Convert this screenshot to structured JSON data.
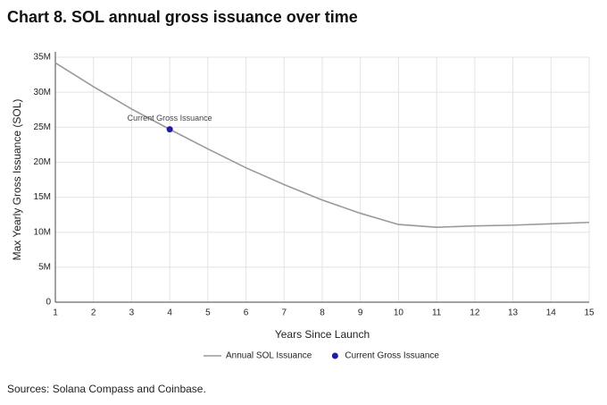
{
  "chart_data": {
    "type": "line",
    "title": "Chart 8. SOL annual gross issuance over time",
    "x_label": "Years Since Launch",
    "y_label": "Max Yearly Gross Issuance (SOL)",
    "x": [
      1,
      2,
      3,
      4,
      5,
      6,
      7,
      8,
      9,
      10,
      11,
      12,
      13,
      14,
      15
    ],
    "series": [
      {
        "name": "Annual SOL Issuance",
        "color": "#9a9a9a",
        "type": "line",
        "values": [
          34200000,
          30800000,
          27600000,
          24700000,
          21900000,
          19200000,
          16800000,
          14600000,
          12700000,
          11100000,
          10700000,
          10900000,
          11000000,
          11200000,
          11400000
        ]
      },
      {
        "name": "Current Gross Issuance",
        "color": "#1c1ca8",
        "type": "scatter",
        "x": [
          4
        ],
        "values": [
          24700000
        ]
      }
    ],
    "annotation": "Current Gross Issuance",
    "xlim": [
      1,
      15
    ],
    "xticks": [
      1,
      2,
      3,
      4,
      5,
      6,
      7,
      8,
      9,
      10,
      11,
      12,
      13,
      14,
      15
    ],
    "ylim": [
      0,
      35000000
    ],
    "yticks": [
      0,
      {
        "value": 5000000,
        "label": "5M"
      },
      {
        "value": 10000000,
        "label": "10M"
      },
      {
        "value": 15000000,
        "label": "15M"
      },
      {
        "value": 20000000,
        "label": "20M"
      },
      {
        "value": 25000000,
        "label": "25M"
      },
      {
        "value": 30000000,
        "label": "30M"
      },
      {
        "value": 35000000,
        "label": "35M"
      }
    ],
    "grid": true,
    "legend": "bottom",
    "source": "Sources: Solana Compass and Coinbase."
  }
}
